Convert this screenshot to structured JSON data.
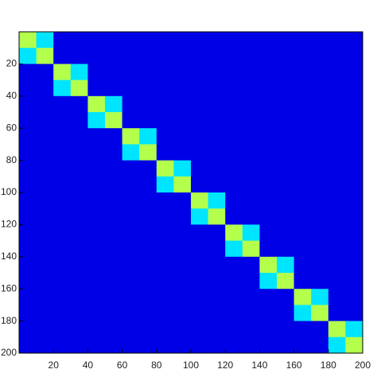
{
  "chart_data": {
    "type": "heatmap",
    "xlim": [
      0,
      200
    ],
    "ylim": [
      0,
      200
    ],
    "zlim": [
      0,
      1
    ],
    "colormap": "jet",
    "xticks": [
      20,
      40,
      60,
      80,
      100,
      120,
      140,
      160,
      180,
      200
    ],
    "yticks": [
      20,
      40,
      60,
      80,
      100,
      120,
      140,
      160,
      180,
      200
    ],
    "z": [
      [
        0.55,
        0.35,
        0.1,
        0.1,
        0.1,
        0.1,
        0.1,
        0.1,
        0.1,
        0.1,
        0.1,
        0.1,
        0.1,
        0.1,
        0.1,
        0.1,
        0.1,
        0.1,
        0.1,
        0.1
      ],
      [
        0.35,
        0.55,
        0.1,
        0.1,
        0.1,
        0.1,
        0.1,
        0.1,
        0.1,
        0.1,
        0.1,
        0.1,
        0.1,
        0.1,
        0.1,
        0.1,
        0.1,
        0.1,
        0.1,
        0.1
      ],
      [
        0.1,
        0.1,
        0.55,
        0.35,
        0.1,
        0.1,
        0.1,
        0.1,
        0.1,
        0.1,
        0.1,
        0.1,
        0.1,
        0.1,
        0.1,
        0.1,
        0.1,
        0.1,
        0.1,
        0.1
      ],
      [
        0.1,
        0.1,
        0.35,
        0.55,
        0.1,
        0.1,
        0.1,
        0.1,
        0.1,
        0.1,
        0.1,
        0.1,
        0.1,
        0.1,
        0.1,
        0.1,
        0.1,
        0.1,
        0.1,
        0.1
      ],
      [
        0.1,
        0.1,
        0.1,
        0.1,
        0.55,
        0.35,
        0.1,
        0.1,
        0.1,
        0.1,
        0.1,
        0.1,
        0.1,
        0.1,
        0.1,
        0.1,
        0.1,
        0.1,
        0.1,
        0.1
      ],
      [
        0.1,
        0.1,
        0.1,
        0.1,
        0.35,
        0.55,
        0.1,
        0.1,
        0.1,
        0.1,
        0.1,
        0.1,
        0.1,
        0.1,
        0.1,
        0.1,
        0.1,
        0.1,
        0.1,
        0.1
      ],
      [
        0.1,
        0.1,
        0.1,
        0.1,
        0.1,
        0.1,
        0.55,
        0.35,
        0.1,
        0.1,
        0.1,
        0.1,
        0.1,
        0.1,
        0.1,
        0.1,
        0.1,
        0.1,
        0.1,
        0.1
      ],
      [
        0.1,
        0.1,
        0.1,
        0.1,
        0.1,
        0.1,
        0.35,
        0.55,
        0.1,
        0.1,
        0.1,
        0.1,
        0.1,
        0.1,
        0.1,
        0.1,
        0.1,
        0.1,
        0.1,
        0.1
      ],
      [
        0.1,
        0.1,
        0.1,
        0.1,
        0.1,
        0.1,
        0.1,
        0.1,
        0.55,
        0.35,
        0.1,
        0.1,
        0.1,
        0.1,
        0.1,
        0.1,
        0.1,
        0.1,
        0.1,
        0.1
      ],
      [
        0.1,
        0.1,
        0.1,
        0.1,
        0.1,
        0.1,
        0.1,
        0.1,
        0.35,
        0.55,
        0.1,
        0.1,
        0.1,
        0.1,
        0.1,
        0.1,
        0.1,
        0.1,
        0.1,
        0.1
      ],
      [
        0.1,
        0.1,
        0.1,
        0.1,
        0.1,
        0.1,
        0.1,
        0.1,
        0.1,
        0.1,
        0.55,
        0.35,
        0.1,
        0.1,
        0.1,
        0.1,
        0.1,
        0.1,
        0.1,
        0.1
      ],
      [
        0.1,
        0.1,
        0.1,
        0.1,
        0.1,
        0.1,
        0.1,
        0.1,
        0.1,
        0.1,
        0.35,
        0.55,
        0.1,
        0.1,
        0.1,
        0.1,
        0.1,
        0.1,
        0.1,
        0.1
      ],
      [
        0.1,
        0.1,
        0.1,
        0.1,
        0.1,
        0.1,
        0.1,
        0.1,
        0.1,
        0.1,
        0.1,
        0.1,
        0.55,
        0.35,
        0.1,
        0.1,
        0.1,
        0.1,
        0.1,
        0.1
      ],
      [
        0.1,
        0.1,
        0.1,
        0.1,
        0.1,
        0.1,
        0.1,
        0.1,
        0.1,
        0.1,
        0.1,
        0.1,
        0.35,
        0.55,
        0.1,
        0.1,
        0.1,
        0.1,
        0.1,
        0.1
      ],
      [
        0.1,
        0.1,
        0.1,
        0.1,
        0.1,
        0.1,
        0.1,
        0.1,
        0.1,
        0.1,
        0.1,
        0.1,
        0.1,
        0.1,
        0.55,
        0.35,
        0.1,
        0.1,
        0.1,
        0.1
      ],
      [
        0.1,
        0.1,
        0.1,
        0.1,
        0.1,
        0.1,
        0.1,
        0.1,
        0.1,
        0.1,
        0.1,
        0.1,
        0.1,
        0.1,
        0.35,
        0.55,
        0.1,
        0.1,
        0.1,
        0.1
      ],
      [
        0.1,
        0.1,
        0.1,
        0.1,
        0.1,
        0.1,
        0.1,
        0.1,
        0.1,
        0.1,
        0.1,
        0.1,
        0.1,
        0.1,
        0.1,
        0.1,
        0.55,
        0.35,
        0.1,
        0.1
      ],
      [
        0.1,
        0.1,
        0.1,
        0.1,
        0.1,
        0.1,
        0.1,
        0.1,
        0.1,
        0.1,
        0.1,
        0.1,
        0.1,
        0.1,
        0.1,
        0.1,
        0.35,
        0.55,
        0.1,
        0.1
      ],
      [
        0.1,
        0.1,
        0.1,
        0.1,
        0.1,
        0.1,
        0.1,
        0.1,
        0.1,
        0.1,
        0.1,
        0.1,
        0.1,
        0.1,
        0.1,
        0.1,
        0.1,
        0.1,
        0.55,
        0.35
      ],
      [
        0.1,
        0.1,
        0.1,
        0.1,
        0.1,
        0.1,
        0.1,
        0.1,
        0.1,
        0.1,
        0.1,
        0.1,
        0.1,
        0.1,
        0.1,
        0.1,
        0.1,
        0.1,
        0.35,
        0.55
      ]
    ]
  }
}
